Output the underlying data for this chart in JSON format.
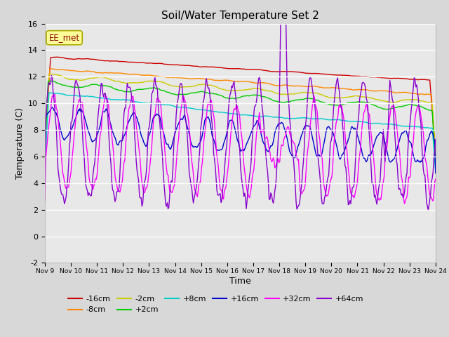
{
  "title": "Soil/Water Temperature Set 2",
  "xlabel": "Time",
  "ylabel": "Temperature (C)",
  "ylim": [
    -2,
    16
  ],
  "yticks": [
    -2,
    0,
    2,
    4,
    6,
    8,
    10,
    12,
    14,
    16
  ],
  "x_labels": [
    "Nov 9",
    "Nov 10",
    "Nov 11",
    "Nov 12",
    "Nov 13",
    "Nov 14",
    "Nov 15",
    "Nov 16",
    "Nov 17",
    "Nov 18",
    "Nov 19",
    "Nov 20",
    "Nov 21",
    "Nov 22",
    "Nov 23",
    "Nov 24"
  ],
  "annotation": "EE_met",
  "series": [
    {
      "label": "-16cm",
      "color": "#cc0000"
    },
    {
      "label": "-8cm",
      "color": "#ff8800"
    },
    {
      "label": "-2cm",
      "color": "#cccc00"
    },
    {
      "label": "+2cm",
      "color": "#00cc00"
    },
    {
      "label": "+8cm",
      "color": "#00cccc"
    },
    {
      "label": "+16cm",
      "color": "#0000cc"
    },
    {
      "label": "+32cm",
      "color": "#ff00ff"
    },
    {
      "label": "+64cm",
      "color": "#8800cc"
    }
  ],
  "background_color": "#d8d8d8",
  "plot_bg": "#e8e8e8",
  "grid_color": "#ffffff",
  "n_points": 480
}
